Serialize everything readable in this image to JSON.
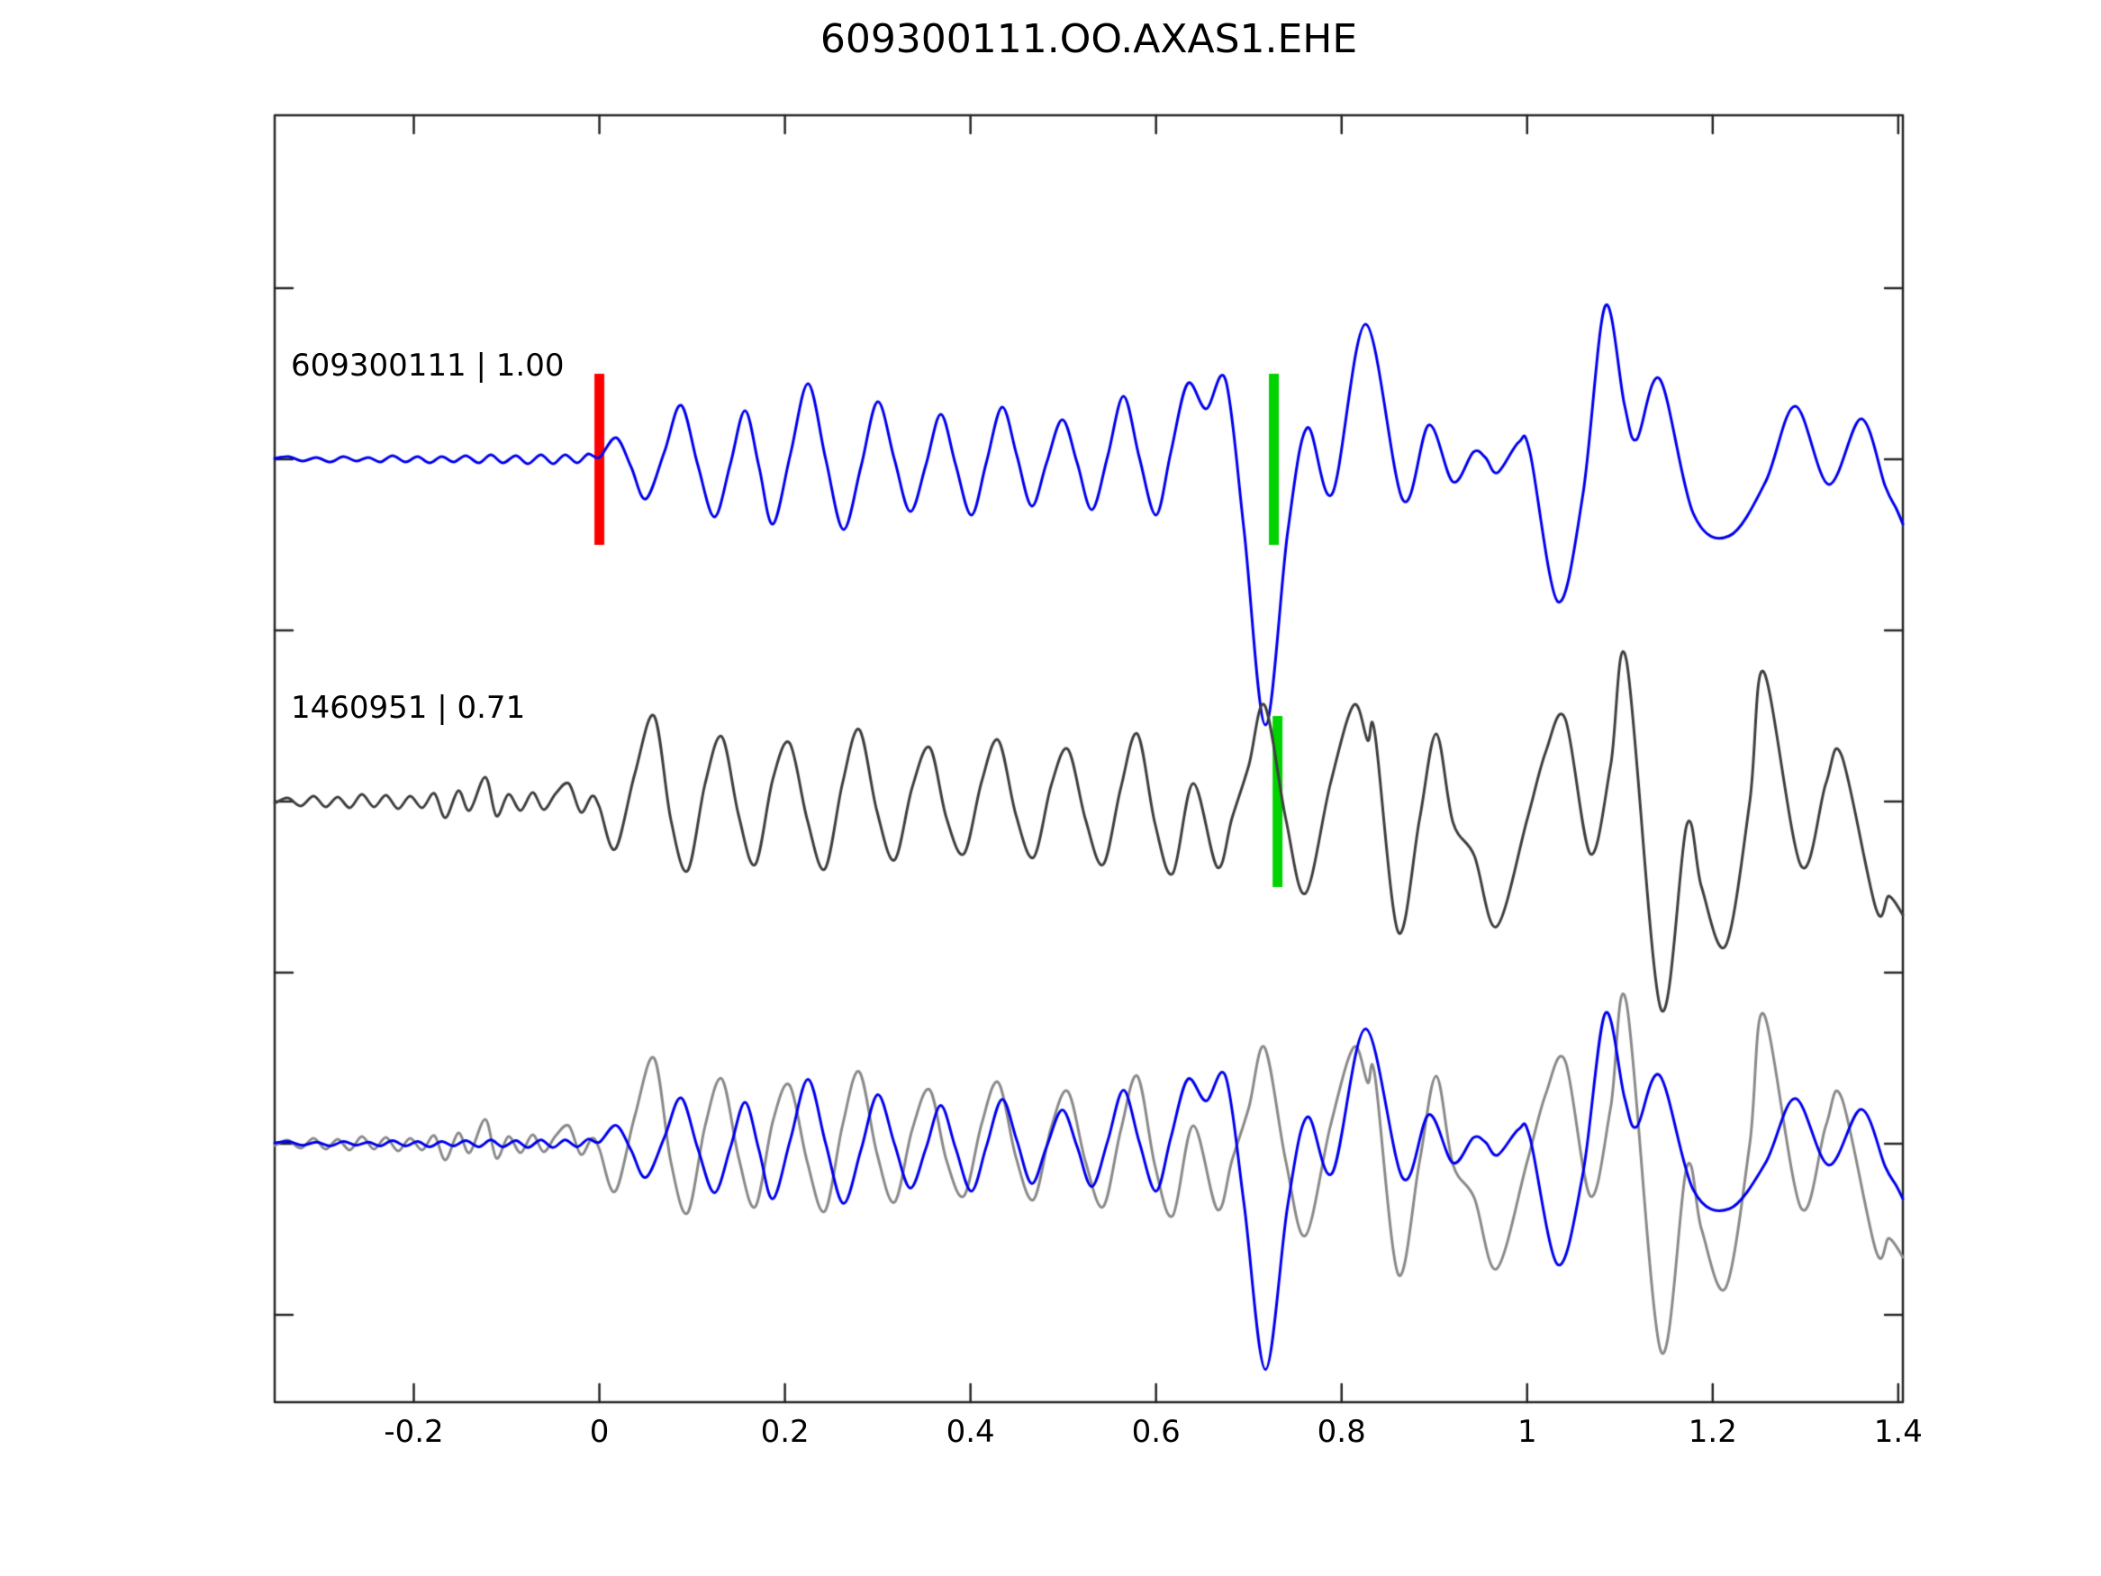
{
  "figure": {
    "title": "609300111.OO.AXAS1.EHE"
  },
  "colors": {
    "trace_blue": "#0000ee",
    "trace_dark_gray": "#3f3f3f",
    "overlay_gray": "#8a8a8a",
    "pick_red": "#ff0000",
    "pick_green": "#00d300",
    "axis": "#262626",
    "text": "#000000"
  },
  "chart_data": {
    "type": "line",
    "title": "609300111.OO.AXAS1.EHE",
    "xlabel": "",
    "ylabel": "",
    "grid": false,
    "legend_position": "none",
    "xlim": [
      -0.35,
      1.405
    ],
    "x_ticks": [
      -0.2,
      0,
      0.2,
      0.4,
      0.6,
      0.8,
      1,
      1.2,
      1.4
    ],
    "x_tick_labels": [
      "-0.2",
      "0",
      "0.2",
      "0.4",
      "0.6",
      "0.8",
      "1",
      "1.2",
      "1.4"
    ],
    "rows": 3,
    "series": [
      {
        "name": "609300111",
        "label": "609300111 | 1.00",
        "color_key": "trace_blue",
        "row": 0,
        "scale": 1.0,
        "points": [
          [
            -0.35,
            1
          ],
          [
            -0.335,
            3
          ],
          [
            -0.32,
            -2
          ],
          [
            -0.305,
            2
          ],
          [
            -0.29,
            -3
          ],
          [
            -0.276,
            3
          ],
          [
            -0.262,
            -2
          ],
          [
            -0.249,
            2
          ],
          [
            -0.236,
            -3
          ],
          [
            -0.223,
            4
          ],
          [
            -0.209,
            -3
          ],
          [
            -0.196,
            3
          ],
          [
            -0.183,
            -4
          ],
          [
            -0.17,
            3
          ],
          [
            -0.157,
            -3
          ],
          [
            -0.144,
            4
          ],
          [
            -0.13,
            -4
          ],
          [
            -0.117,
            5
          ],
          [
            -0.104,
            -4
          ],
          [
            -0.09,
            4
          ],
          [
            -0.077,
            -5
          ],
          [
            -0.063,
            5
          ],
          [
            -0.05,
            -5
          ],
          [
            -0.037,
            5
          ],
          [
            -0.024,
            -4
          ],
          [
            -0.012,
            6
          ],
          [
            0.0,
            2
          ],
          [
            0.018,
            24
          ],
          [
            0.034,
            -8
          ],
          [
            0.05,
            -44
          ],
          [
            0.07,
            8
          ],
          [
            0.088,
            60
          ],
          [
            0.106,
            -6
          ],
          [
            0.124,
            -64
          ],
          [
            0.141,
            -6
          ],
          [
            0.157,
            54
          ],
          [
            0.172,
            -8
          ],
          [
            0.187,
            -72
          ],
          [
            0.206,
            6
          ],
          [
            0.225,
            84
          ],
          [
            0.244,
            0
          ],
          [
            0.263,
            -78
          ],
          [
            0.282,
            -8
          ],
          [
            0.3,
            64
          ],
          [
            0.318,
            0
          ],
          [
            0.335,
            -58
          ],
          [
            0.352,
            -6
          ],
          [
            0.368,
            50
          ],
          [
            0.384,
            -6
          ],
          [
            0.401,
            -62
          ],
          [
            0.417,
            -4
          ],
          [
            0.434,
            58
          ],
          [
            0.45,
            4
          ],
          [
            0.466,
            -52
          ],
          [
            0.482,
            -4
          ],
          [
            0.499,
            44
          ],
          [
            0.515,
            -4
          ],
          [
            0.531,
            -56
          ],
          [
            0.548,
            4
          ],
          [
            0.565,
            70
          ],
          [
            0.582,
            2
          ],
          [
            0.6,
            -62
          ],
          [
            0.616,
            8
          ],
          [
            0.634,
            84
          ],
          [
            0.654,
            56
          ],
          [
            0.675,
            88
          ],
          [
            0.695,
            -80
          ],
          [
            0.718,
            -295
          ],
          [
            0.742,
            -80
          ],
          [
            0.763,
            35
          ],
          [
            0.79,
            -38
          ],
          [
            0.826,
            150
          ],
          [
            0.866,
            -45
          ],
          [
            0.894,
            38
          ],
          [
            0.92,
            -25
          ],
          [
            0.942,
            8
          ],
          [
            0.955,
            2
          ],
          [
            0.968,
            -15
          ],
          [
            0.991,
            19
          ],
          [
            1.003,
            8
          ],
          [
            1.033,
            -158
          ],
          [
            1.06,
            -40
          ],
          [
            1.084,
            170
          ],
          [
            1.105,
            60
          ],
          [
            1.118,
            22
          ],
          [
            1.143,
            89
          ],
          [
            1.179,
            -60
          ],
          [
            1.218,
            -85
          ],
          [
            1.257,
            -25
          ],
          [
            1.289,
            59
          ],
          [
            1.325,
            -28
          ],
          [
            1.36,
            45
          ],
          [
            1.386,
            -30
          ],
          [
            1.398,
            -55
          ],
          [
            1.405,
            -72
          ]
        ]
      },
      {
        "name": "1460951",
        "label": "1460951 | 0.71",
        "color_key": "trace_dark_gray",
        "row": 1,
        "scale": 1.0,
        "points": [
          [
            -0.35,
            -2
          ],
          [
            -0.336,
            4
          ],
          [
            -0.322,
            -5
          ],
          [
            -0.308,
            6
          ],
          [
            -0.295,
            -6
          ],
          [
            -0.282,
            5
          ],
          [
            -0.269,
            -7
          ],
          [
            -0.256,
            8
          ],
          [
            -0.243,
            -6
          ],
          [
            -0.23,
            7
          ],
          [
            -0.217,
            -8
          ],
          [
            -0.204,
            6
          ],
          [
            -0.191,
            -7
          ],
          [
            -0.178,
            9
          ],
          [
            -0.166,
            -18
          ],
          [
            -0.152,
            12
          ],
          [
            -0.14,
            -10
          ],
          [
            -0.123,
            27
          ],
          [
            -0.111,
            -16
          ],
          [
            -0.098,
            8
          ],
          [
            -0.085,
            -10
          ],
          [
            -0.072,
            10
          ],
          [
            -0.06,
            -9
          ],
          [
            -0.047,
            9
          ],
          [
            -0.033,
            20
          ],
          [
            -0.02,
            -12
          ],
          [
            -0.008,
            6
          ],
          [
            0.0,
            -6
          ],
          [
            0.017,
            -53
          ],
          [
            0.038,
            30
          ],
          [
            0.059,
            95
          ],
          [
            0.077,
            -20
          ],
          [
            0.095,
            -77
          ],
          [
            0.114,
            20
          ],
          [
            0.132,
            72
          ],
          [
            0.15,
            -15
          ],
          [
            0.168,
            -70
          ],
          [
            0.187,
            25
          ],
          [
            0.205,
            65
          ],
          [
            0.224,
            -20
          ],
          [
            0.243,
            -75
          ],
          [
            0.262,
            20
          ],
          [
            0.28,
            80
          ],
          [
            0.299,
            -10
          ],
          [
            0.318,
            -65
          ],
          [
            0.337,
            15
          ],
          [
            0.356,
            60
          ],
          [
            0.374,
            -18
          ],
          [
            0.393,
            -58
          ],
          [
            0.412,
            22
          ],
          [
            0.43,
            68
          ],
          [
            0.449,
            -15
          ],
          [
            0.468,
            -62
          ],
          [
            0.487,
            18
          ],
          [
            0.505,
            58
          ],
          [
            0.524,
            -20
          ],
          [
            0.543,
            -70
          ],
          [
            0.562,
            15
          ],
          [
            0.58,
            75
          ],
          [
            0.599,
            -25
          ],
          [
            0.618,
            -80
          ],
          [
            0.64,
            20
          ],
          [
            0.666,
            -73
          ],
          [
            0.682,
            -18
          ],
          [
            0.7,
            40
          ],
          [
            0.717,
            107
          ],
          [
            0.74,
            -20
          ],
          [
            0.761,
            -102
          ],
          [
            0.788,
            20
          ],
          [
            0.813,
            107
          ],
          [
            0.828,
            68
          ],
          [
            0.836,
            75
          ],
          [
            0.861,
            -145
          ],
          [
            0.884,
            -20
          ],
          [
            0.902,
            75
          ],
          [
            0.92,
            -23
          ],
          [
            0.943,
            -60
          ],
          [
            0.967,
            -139
          ],
          [
            1.0,
            -20
          ],
          [
            1.02,
            55
          ],
          [
            1.041,
            92
          ],
          [
            1.068,
            -58
          ],
          [
            1.09,
            40
          ],
          [
            1.107,
            157
          ],
          [
            1.144,
            -230
          ],
          [
            1.172,
            -26
          ],
          [
            1.188,
            -95
          ],
          [
            1.214,
            -160
          ],
          [
            1.24,
            0
          ],
          [
            1.255,
            144
          ],
          [
            1.295,
            -71
          ],
          [
            1.322,
            20
          ],
          [
            1.339,
            51
          ],
          [
            1.376,
            -119
          ],
          [
            1.39,
            -105
          ],
          [
            1.405,
            -126
          ]
        ]
      },
      {
        "name": "overlay-609300111",
        "label": null,
        "color_key": "trace_blue",
        "row": 2,
        "scale": 0.85,
        "ref": "609300111"
      },
      {
        "name": "overlay-1460951",
        "label": null,
        "color_key": "overlay_gray",
        "row": 2,
        "scale": 1.0,
        "ref": "1460951"
      }
    ],
    "pick_markers": [
      {
        "name": "template-pick",
        "color_key": "pick_red",
        "t": 0.0,
        "row": 0
      },
      {
        "name": "aligned-pick-trace1",
        "color_key": "pick_green",
        "t": 0.727,
        "row": 0
      },
      {
        "name": "aligned-pick-trace2",
        "color_key": "pick_green",
        "t": 0.731,
        "row": 1
      }
    ]
  }
}
